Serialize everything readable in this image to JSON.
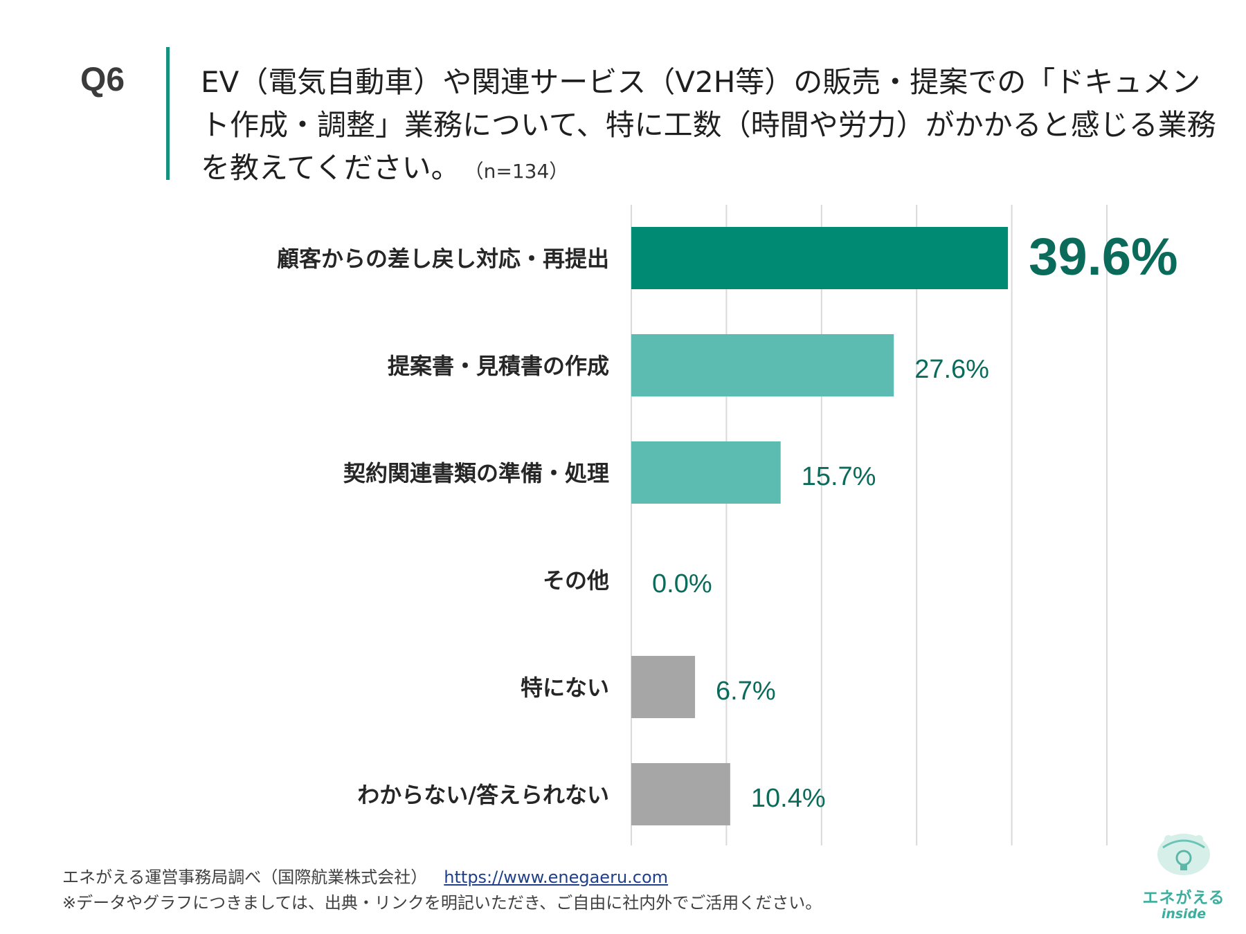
{
  "question": {
    "label": "Q6",
    "text": "EV（電気自動車）や関連サービス（V2H等）の販売・提案での「ドキュメント作成・調整」業務について、特に工数（時間や労力）がかかると感じる業務を教えてください。",
    "sample": "（n=134）"
  },
  "chart_data": {
    "type": "bar",
    "orientation": "horizontal",
    "categories": [
      "顧客からの差し戻し対応・再提出",
      "提案書・見積書の作成",
      "契約関連書類の準備・処理",
      "その他",
      "特にない",
      "わからない/答えられない"
    ],
    "values": [
      39.6,
      27.6,
      15.7,
      0.0,
      6.7,
      10.4
    ],
    "value_labels": [
      "39.6%",
      "27.6%",
      "15.7%",
      "0.0%",
      "6.7%",
      "10.4%"
    ],
    "highlight_index": 0,
    "xlim": [
      0,
      50
    ],
    "grid": true,
    "colors": {
      "highlight": "#008a74",
      "primary": "#5cbcb1",
      "neutral": "#a6a6a6",
      "label": "#0b6b5a",
      "grid": "#d9d9d9"
    }
  },
  "footer": {
    "source": "エネがえる運営事務局調べ（国際航業株式会社）",
    "url": "https://www.enegaeru.com",
    "note": "※データやグラフにつきましては、出典・リンクを明記いただき、ご自由に社内外でご活用ください。"
  },
  "logo": {
    "name": "エネがえる",
    "sub": "inside"
  }
}
